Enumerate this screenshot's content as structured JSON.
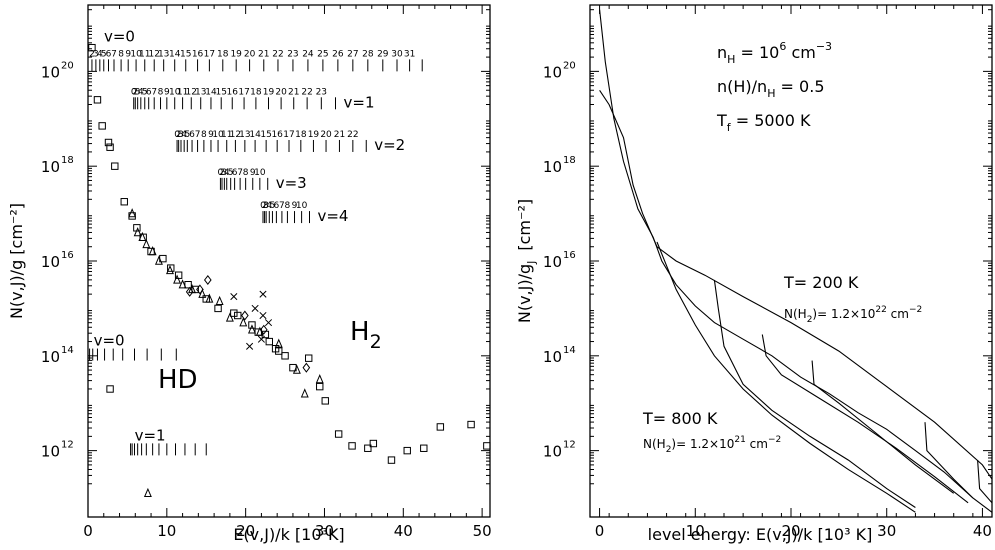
{
  "chart_data": [
    {
      "type": "scatter",
      "xlabel": "E(v,J)/k  [10³K]",
      "ylabel": "N(v,J)/g  [cm⁻²]",
      "x_ticks": [
        "0",
        "10",
        "20",
        "30",
        "40",
        "50"
      ],
      "y_ticks": [
        "12",
        "14",
        "16",
        "18",
        "20"
      ],
      "y_tick_base": "10",
      "xlim": [
        0,
        51
      ],
      "ylim_log10": [
        10.6,
        21.4
      ],
      "species_labels": [
        "H",
        "2",
        "HD"
      ],
      "level_ladders": [
        {
          "label": "v=0",
          "log_y": 20.0,
          "energies": [
            0.5,
            1.0,
            1.5,
            2.0,
            2.6,
            3.3,
            4.2,
            5.1,
            6.1,
            7.2,
            8.4,
            9.6,
            11.0,
            12.4,
            13.9,
            15.4,
            17.1,
            18.8,
            20.5,
            22.3,
            24.1,
            26.0,
            27.9,
            29.8,
            31.7,
            33.6,
            35.5,
            37.4,
            39.2,
            40.8,
            42.4
          ],
          "numbers": "2 3 4 5 6 7 8 9 10 11 12 13 14 15 16 17 18 19 20 21 22 23 24 25 26 27 28 29 30 31"
        },
        {
          "label": "v=1",
          "log_y": 19.2,
          "energies": [
            5.8,
            6.0,
            6.3,
            6.7,
            7.2,
            7.7,
            8.4,
            9.2,
            10.0,
            11.0,
            12.0,
            13.1,
            14.3,
            15.6,
            16.9,
            18.3,
            19.8,
            21.3,
            22.9,
            24.5,
            26.1,
            27.8,
            29.6,
            31.4
          ],
          "numbers": "0 2 3 4 5 6 7 8 9 10 11 12 13 14 15 16 17 18 19 20 21 22 23"
        },
        {
          "label": "v=2",
          "log_y": 18.3,
          "energies": [
            11.3,
            11.5,
            11.8,
            12.2,
            12.6,
            13.2,
            13.9,
            14.7,
            15.6,
            16.5,
            17.6,
            18.7,
            19.9,
            21.2,
            22.6,
            24.0,
            25.5,
            27.0,
            28.6,
            30.2,
            31.9,
            33.6,
            35.3
          ],
          "numbers": "0 2 3 4 5 6 7 8 9 10 11 12 13 14 15 16 17 18 19 20 21 22"
        },
        {
          "label": "v=3",
          "log_y": 17.5,
          "energies": [
            16.8,
            17.0,
            17.3,
            17.6,
            18.1,
            18.6,
            19.3,
            20.0,
            20.9,
            21.8,
            22.8
          ],
          "numbers": "0 2 3 4 5 6 7 8 9 10"
        },
        {
          "label": "v=4",
          "log_y": 16.8,
          "energies": [
            22.2,
            22.4,
            22.6,
            23.0,
            23.4,
            23.9,
            24.6,
            25.3,
            26.2,
            27.1,
            28.1
          ],
          "numbers": "0 2 3 4 5 6 7 8 9 10"
        },
        {
          "label": "v=0",
          "log_y": 13.9,
          "energies": [
            0.2,
            0.6,
            1.2,
            2.1,
            3.2,
            4.4,
            5.9,
            7.5,
            9.3,
            11.2
          ],
          "numbers": ""
        },
        {
          "label": "v=1",
          "log_y": 11.9,
          "energies": [
            5.4,
            5.6,
            5.9,
            6.3,
            6.8,
            7.4,
            8.2,
            9.0,
            10.0,
            11.1,
            12.3,
            13.6,
            15.0
          ],
          "numbers": ""
        }
      ],
      "series": [
        {
          "marker": "square",
          "points": [
            [
              0.5,
              20.5
            ],
            [
              1.2,
              19.4
            ],
            [
              1.8,
              18.85
            ],
            [
              2.6,
              18.5
            ],
            [
              2.8,
              18.4
            ],
            [
              3.4,
              18.0
            ],
            [
              4.6,
              17.25
            ],
            [
              5.6,
              16.95
            ],
            [
              6.2,
              16.7
            ],
            [
              7.0,
              16.5
            ],
            [
              8.0,
              16.2
            ],
            [
              9.5,
              16.05
            ],
            [
              10.5,
              15.85
            ],
            [
              11.5,
              15.7
            ],
            [
              12.7,
              15.5
            ],
            [
              13.6,
              15.4
            ],
            [
              15.0,
              15.2
            ],
            [
              16.5,
              15.0
            ],
            [
              18.5,
              14.9
            ],
            [
              19.0,
              14.85
            ],
            [
              20.8,
              14.65
            ],
            [
              21.6,
              14.5
            ],
            [
              22.5,
              14.45
            ],
            [
              23.0,
              14.3
            ],
            [
              23.8,
              14.15
            ],
            [
              24.2,
              14.1
            ],
            [
              25.0,
              14.0
            ],
            [
              26.0,
              13.75
            ],
            [
              28.0,
              13.95
            ],
            [
              29.4,
              13.35
            ],
            [
              30.1,
              13.05
            ],
            [
              31.8,
              12.35
            ],
            [
              33.5,
              12.1
            ],
            [
              35.5,
              12.05
            ],
            [
              36.2,
              12.15
            ],
            [
              38.5,
              11.8
            ],
            [
              40.5,
              12.0
            ],
            [
              42.6,
              12.05
            ],
            [
              44.7,
              12.5
            ],
            [
              48.6,
              12.55
            ],
            [
              50.6,
              12.1
            ],
            [
              2.8,
              13.3
            ]
          ]
        },
        {
          "marker": "triangle",
          "points": [
            [
              5.6,
              17.0
            ],
            [
              6.3,
              16.6
            ],
            [
              6.9,
              16.5
            ],
            [
              7.4,
              16.35
            ],
            [
              8.2,
              16.2
            ],
            [
              9.0,
              16.0
            ],
            [
              10.4,
              15.8
            ],
            [
              11.3,
              15.6
            ],
            [
              12.0,
              15.5
            ],
            [
              13.2,
              15.4
            ],
            [
              14.5,
              15.3
            ],
            [
              15.4,
              15.2
            ],
            [
              16.7,
              15.15
            ],
            [
              18.0,
              14.8
            ],
            [
              19.7,
              14.7
            ],
            [
              20.8,
              14.55
            ],
            [
              21.8,
              14.5
            ],
            [
              24.2,
              14.25
            ],
            [
              26.5,
              13.7
            ],
            [
              27.5,
              13.2
            ],
            [
              29.4,
              13.5
            ],
            [
              7.6,
              11.1
            ]
          ]
        },
        {
          "marker": "cross",
          "points": [
            [
              18.5,
              15.25
            ],
            [
              21.2,
              15.0
            ],
            [
              22.2,
              15.3
            ],
            [
              22.2,
              14.85
            ],
            [
              22.9,
              14.7
            ],
            [
              20.5,
              14.2
            ],
            [
              22.0,
              14.35
            ]
          ]
        },
        {
          "marker": "diamond",
          "points": [
            [
              12.9,
              15.35
            ],
            [
              14.2,
              15.4
            ],
            [
              15.2,
              15.6
            ],
            [
              19.9,
              14.85
            ],
            [
              22.3,
              14.55
            ],
            [
              27.7,
              13.75
            ]
          ]
        }
      ]
    },
    {
      "type": "line",
      "xlabel": "level energy:  E(v,J)/k  [10³ K]",
      "ylabel": "N(v,J)/g",
      "ylabel_sub": "J",
      "ylabel_unit": "[cm⁻²]",
      "x_ticks": [
        "0",
        "10",
        "20",
        "30",
        "40"
      ],
      "y_ticks": [
        "12",
        "14",
        "16",
        "18",
        "20"
      ],
      "y_tick_base": "10",
      "xlim": [
        -1,
        41
      ],
      "ylim_log10": [
        10.6,
        21.4
      ],
      "annotations": {
        "nH_line": {
          "a": "n",
          "a_sub": "H",
          "b": " = 10",
          "b_sup": "6",
          "c": " cm",
          "c_sup": "−3"
        },
        "frac_line": {
          "a": "n(H)/n",
          "a_sub": "H",
          "b": " = 0.5"
        },
        "tf_line": {
          "a": "T",
          "a_sub": "f",
          "b": " = 5000 K"
        },
        "t200": "T= 200 K",
        "nh2_200": {
          "a": "N(H",
          "a_sub": "2",
          "b": ")= 1.2×10",
          "b_sup": "22",
          "c": " cm",
          "c_sup": "−2"
        },
        "t800": "T= 800 K",
        "nh2_800": {
          "a": "N(H",
          "a_sub": "2",
          "b": ")= 1.2×10",
          "b_sup": "21",
          "c": " cm",
          "c_sup": "−2"
        }
      },
      "series": [
        {
          "name": "T= 200 K",
          "points": [
            [
              0.0,
              21.3
            ],
            [
              0.6,
              20.2
            ],
            [
              1.5,
              19.0
            ],
            [
              2.5,
              18.1
            ],
            [
              4.0,
              17.1
            ],
            [
              5.6,
              16.5
            ],
            [
              6.5,
              16.0
            ],
            [
              8.0,
              15.5
            ],
            [
              10.0,
              15.05
            ],
            [
              12.0,
              14.7
            ],
            [
              15.0,
              14.35
            ],
            [
              18.0,
              14.0
            ],
            [
              21.0,
              13.55
            ],
            [
              24.0,
              13.2
            ],
            [
              27.0,
              12.8
            ],
            [
              30.0,
              12.45
            ],
            [
              33.0,
              12.0
            ],
            [
              36.0,
              11.55
            ],
            [
              39.0,
              11.0
            ],
            [
              41.0,
              10.7
            ]
          ]
        },
        {
          "name": "T= 200 K",
          "points": [
            [
              0.0,
              19.6
            ],
            [
              1.0,
              19.3
            ],
            [
              2.5,
              18.6
            ],
            [
              3.5,
              17.6
            ],
            [
              4.5,
              17.0
            ],
            [
              6.0,
              16.3
            ],
            [
              8.0,
              16.0
            ],
            [
              11.0,
              15.7
            ],
            [
              15.0,
              15.25
            ],
            [
              20.0,
              14.7
            ],
            [
              25.0,
              14.1
            ],
            [
              30.0,
              13.35
            ],
            [
              35.0,
              12.6
            ],
            [
              40.0,
              11.7
            ],
            [
              41.0,
              11.4
            ]
          ]
        },
        {
          "name": "T= 800 K",
          "points": [
            [
              6.0,
              16.4
            ],
            [
              8.0,
              15.4
            ],
            [
              10.0,
              14.65
            ],
            [
              12.0,
              14.0
            ],
            [
              15.0,
              13.3
            ],
            [
              18.0,
              12.75
            ],
            [
              22.0,
              12.15
            ],
            [
              26.0,
              11.6
            ],
            [
              30.0,
              11.1
            ],
            [
              33.0,
              10.7
            ]
          ]
        },
        {
          "name": "T= 800 K",
          "points": [
            [
              12.0,
              15.6
            ],
            [
              12.4,
              15.0
            ],
            [
              13.0,
              14.2
            ],
            [
              15.0,
              13.4
            ],
            [
              18.0,
              12.85
            ],
            [
              22.0,
              12.3
            ],
            [
              26.0,
              11.8
            ],
            [
              30.0,
              11.2
            ],
            [
              33.0,
              10.8
            ]
          ]
        },
        {
          "name": "T= 200 K",
          "points": [
            [
              17.0,
              14.45
            ],
            [
              17.4,
              14.0
            ],
            [
              19.0,
              13.6
            ],
            [
              23.0,
              13.1
            ],
            [
              27.0,
              12.6
            ],
            [
              31.0,
              12.05
            ],
            [
              35.0,
              11.45
            ],
            [
              38.5,
              10.9
            ]
          ]
        },
        {
          "name": "T= 200 K",
          "points": [
            [
              22.2,
              13.9
            ],
            [
              22.4,
              13.4
            ],
            [
              25.0,
              13.0
            ],
            [
              29.0,
              12.35
            ],
            [
              33.0,
              11.7
            ],
            [
              37.0,
              11.1
            ]
          ]
        },
        {
          "name": "T= 200 K",
          "points": [
            [
              34.0,
              12.6
            ],
            [
              34.2,
              12.0
            ],
            [
              37.0,
              11.4
            ],
            [
              39.0,
              11.0
            ]
          ]
        },
        {
          "name": "T= 200 K",
          "points": [
            [
              39.5,
              11.8
            ],
            [
              39.7,
              11.2
            ],
            [
              41.0,
              10.9
            ]
          ]
        }
      ]
    }
  ]
}
